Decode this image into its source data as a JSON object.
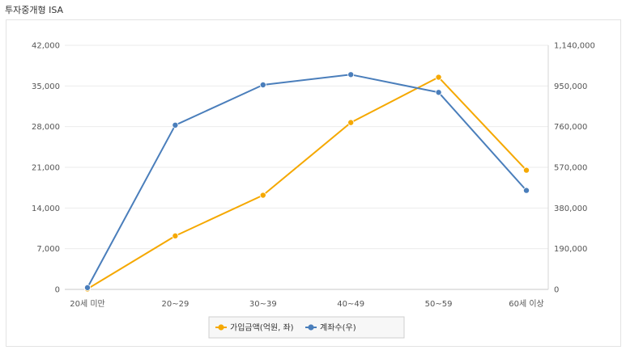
{
  "page": {
    "title": "투자중개형 ISA"
  },
  "chart_data": {
    "type": "line",
    "categories": [
      "20세 미만",
      "20~29",
      "30~39",
      "40~49",
      "50~59",
      "60세 이상"
    ],
    "y_left": {
      "ticks": [
        "0",
        "7,000",
        "14,000",
        "21,000",
        "28,000",
        "35,000",
        "42,000"
      ],
      "range": [
        0,
        42000
      ]
    },
    "y_right": {
      "ticks": [
        "0",
        "190,000",
        "380,000",
        "570,000",
        "760,000",
        "950,000",
        "1,140,000"
      ],
      "range": [
        0,
        1140000
      ]
    },
    "series": [
      {
        "name": "가입금액(억원, 좌)",
        "axis": "left",
        "color": "#f5a800",
        "values": [
          80,
          9200,
          16200,
          28700,
          36500,
          20500
        ]
      },
      {
        "name": "계좌수(우)",
        "axis": "right",
        "color": "#4a7ebb",
        "values": [
          8000,
          767000,
          955000,
          1003000,
          920000,
          462000
        ]
      }
    ],
    "grid": true,
    "legend": "bottom-center"
  }
}
